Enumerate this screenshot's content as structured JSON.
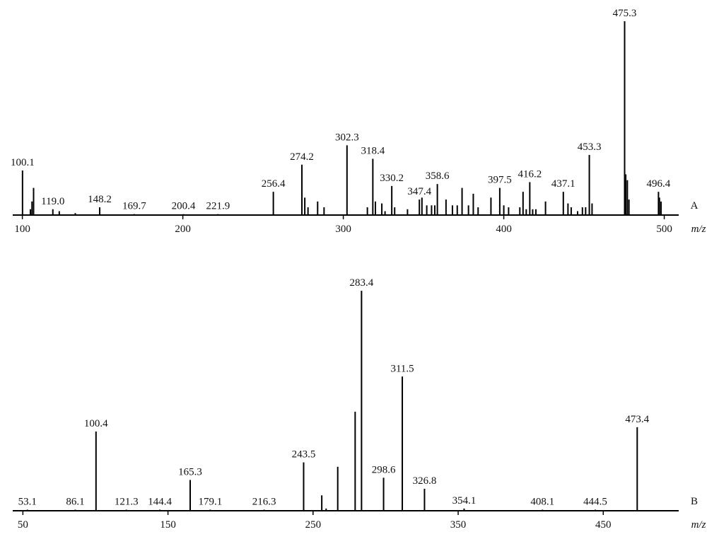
{
  "chart_data": [
    {
      "type": "spectrum",
      "panel_label": "A",
      "xlabel": "m/z",
      "color": "#000000",
      "xlim": [
        94,
        509
      ],
      "ylim": [
        0,
        100
      ],
      "xticks": [
        100,
        200,
        300,
        400,
        500
      ],
      "x": [
        100.1,
        105,
        106,
        107,
        119,
        123,
        133,
        148.2,
        169.7,
        200.4,
        221.9,
        256.4,
        274.2,
        276,
        278,
        284,
        288,
        302.3,
        315,
        318.4,
        320,
        324,
        326,
        330.2,
        332,
        340,
        347.4,
        349,
        352,
        355,
        357,
        358.6,
        364,
        368,
        371,
        374,
        378,
        381,
        384,
        392,
        397.5,
        400,
        403,
        410,
        412,
        414,
        416.2,
        418,
        420,
        426,
        437.1,
        440,
        442,
        446,
        449,
        451,
        453.3,
        455,
        475.3,
        476,
        477,
        478,
        496.4,
        497,
        498
      ],
      "values": [
        23,
        3,
        7,
        14,
        3,
        2,
        1,
        4,
        0.5,
        0.5,
        0.5,
        12,
        26,
        9,
        4,
        7,
        4,
        36,
        4,
        29,
        7,
        6,
        2,
        15,
        4,
        3,
        8,
        9,
        5,
        5,
        5,
        16,
        8,
        5,
        5,
        14,
        5,
        11,
        4,
        9,
        14,
        5,
        4,
        4,
        12,
        3,
        17,
        3,
        3,
        7,
        12,
        6,
        4,
        2,
        4,
        4,
        31,
        6,
        100,
        21,
        18,
        8,
        12,
        9,
        7
      ],
      "labels": [
        "100.1",
        null,
        null,
        null,
        "119.0",
        null,
        null,
        "148.2",
        "169.7",
        "200.4",
        "221.9",
        "256.4",
        "274.2",
        null,
        null,
        null,
        null,
        "302.3",
        null,
        "318.4",
        null,
        null,
        null,
        "330.2",
        null,
        null,
        "347.4",
        null,
        null,
        null,
        null,
        "358.6",
        null,
        null,
        null,
        null,
        null,
        null,
        null,
        null,
        "397.5",
        null,
        null,
        null,
        null,
        null,
        "416.2",
        null,
        null,
        null,
        "437.1",
        null,
        null,
        null,
        null,
        null,
        "453.3",
        null,
        "475.3",
        null,
        null,
        null,
        "496.4",
        null,
        null
      ]
    },
    {
      "type": "spectrum",
      "panel_label": "B",
      "xlabel": "m/z",
      "color": "#000000",
      "xlim": [
        43,
        502
      ],
      "ylim": [
        0,
        100
      ],
      "xticks": [
        50,
        150,
        250,
        350,
        450
      ],
      "x": [
        53.1,
        86.1,
        100.4,
        121.3,
        144.4,
        165.3,
        179.1,
        216.3,
        243.5,
        256,
        259,
        267,
        279,
        283.4,
        298.6,
        311.5,
        326.8,
        354.1,
        408.1,
        444.5,
        473.4
      ],
      "values": [
        0.5,
        0.5,
        36,
        0.5,
        0.5,
        14,
        0.5,
        0.5,
        22,
        7,
        1,
        20,
        45,
        100,
        15,
        61,
        10,
        1,
        0.5,
        0.5,
        38
      ],
      "labels": [
        "53.1",
        "86.1",
        "100.4",
        "121.3",
        "144.4",
        "165.3",
        "179.1",
        "216.3",
        "243.5",
        null,
        null,
        null,
        null,
        "283.4",
        "298.6",
        "311.5",
        "326.8",
        "354.1",
        "408.1",
        "444.5",
        "473.4"
      ]
    }
  ]
}
